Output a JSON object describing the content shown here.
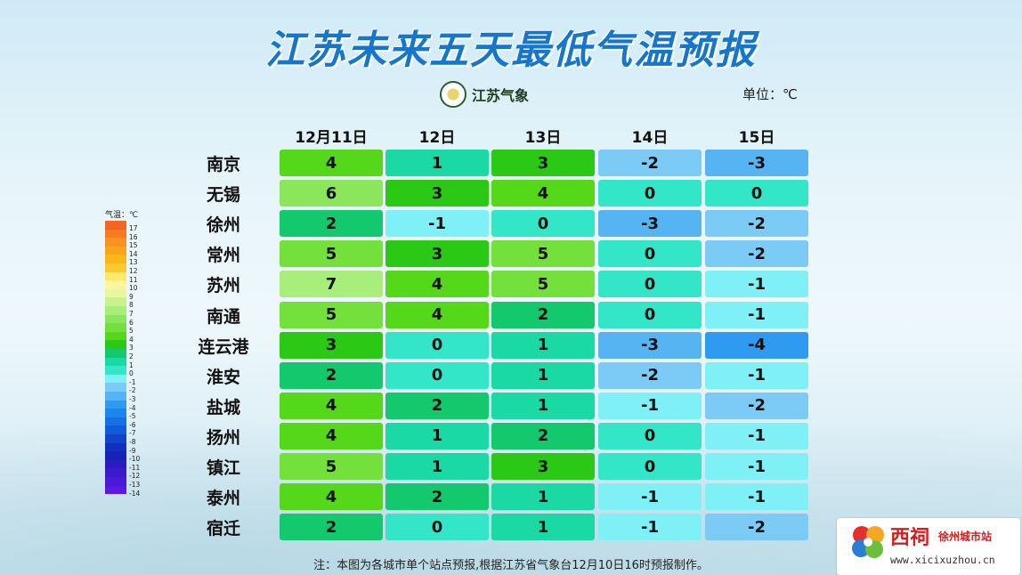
{
  "title": "江苏未来五天最低气温预报",
  "logo_text": "江苏气象",
  "unit_label": "单位：℃",
  "footnote": "注：本图为各城市单个站点预报,根据江苏省气象台12月10日16时预报制作。",
  "brand": {
    "name": "西祠",
    "sub": "徐州城市站",
    "url": "www.xicixuzhou.cn"
  },
  "legend": {
    "title": "气温：℃",
    "items": [
      {
        "value": "17",
        "color": "#f26522"
      },
      {
        "value": "16",
        "color": "#f47b20"
      },
      {
        "value": "15",
        "color": "#f79420"
      },
      {
        "value": "14",
        "color": "#f9a51b"
      },
      {
        "value": "13",
        "color": "#fbb617"
      },
      {
        "value": "12",
        "color": "#fdc92e"
      },
      {
        "value": "11",
        "color": "#fde86a"
      },
      {
        "value": "10",
        "color": "#fff59d"
      },
      {
        "value": "9",
        "color": "#e6f7a0"
      },
      {
        "value": "8",
        "color": "#c9f28c"
      },
      {
        "value": "7",
        "color": "#a8ee7a"
      },
      {
        "value": "6",
        "color": "#8ce65c"
      },
      {
        "value": "5",
        "color": "#74e03c"
      },
      {
        "value": "4",
        "color": "#55d81a"
      },
      {
        "value": "3",
        "color": "#2bc816"
      },
      {
        "value": "2",
        "color": "#14c86e"
      },
      {
        "value": "1",
        "color": "#1ad9a4"
      },
      {
        "value": "0",
        "color": "#33e6c8"
      },
      {
        "value": "-1",
        "color": "#7ef0f6"
      },
      {
        "value": "-2",
        "color": "#7ccaf6"
      },
      {
        "value": "-3",
        "color": "#56b4f3"
      },
      {
        "value": "-4",
        "color": "#2e9af0"
      },
      {
        "value": "-5",
        "color": "#1c86ec"
      },
      {
        "value": "-6",
        "color": "#1470e4"
      },
      {
        "value": "-7",
        "color": "#125ad9"
      },
      {
        "value": "-8",
        "color": "#1144cc"
      },
      {
        "value": "-9",
        "color": "#1030c0"
      },
      {
        "value": "-10",
        "color": "#1822b8"
      },
      {
        "value": "-11",
        "color": "#2a1cc0"
      },
      {
        "value": "-12",
        "color": "#3a1bcc"
      },
      {
        "value": "-13",
        "color": "#4a1ad8"
      },
      {
        "value": "-14",
        "color": "#5a19e0"
      }
    ]
  },
  "chart_data": {
    "type": "table",
    "title": "江苏未来五天最低气温预报",
    "columns": [
      "12月11日",
      "12日",
      "13日",
      "14日",
      "15日"
    ],
    "rows": [
      {
        "city": "南京",
        "values": [
          4,
          1,
          3,
          -2,
          -3
        ]
      },
      {
        "city": "无锡",
        "values": [
          6,
          3,
          4,
          0,
          0
        ]
      },
      {
        "city": "徐州",
        "values": [
          2,
          -1,
          0,
          -3,
          -2
        ]
      },
      {
        "city": "常州",
        "values": [
          5,
          3,
          5,
          0,
          -2
        ]
      },
      {
        "city": "苏州",
        "values": [
          7,
          4,
          5,
          0,
          -1
        ]
      },
      {
        "city": "南通",
        "values": [
          5,
          4,
          2,
          0,
          -1
        ]
      },
      {
        "city": "连云港",
        "values": [
          3,
          0,
          1,
          -3,
          -4
        ]
      },
      {
        "city": "淮安",
        "values": [
          2,
          0,
          1,
          -2,
          -1
        ]
      },
      {
        "city": "盐城",
        "values": [
          4,
          2,
          1,
          -1,
          -2
        ]
      },
      {
        "city": "扬州",
        "values": [
          4,
          1,
          2,
          0,
          -1
        ]
      },
      {
        "city": "镇江",
        "values": [
          5,
          1,
          3,
          0,
          -1
        ]
      },
      {
        "city": "泰州",
        "values": [
          4,
          2,
          1,
          -1,
          -1
        ]
      },
      {
        "city": "宿迁",
        "values": [
          2,
          0,
          1,
          -1,
          -2
        ]
      }
    ]
  }
}
